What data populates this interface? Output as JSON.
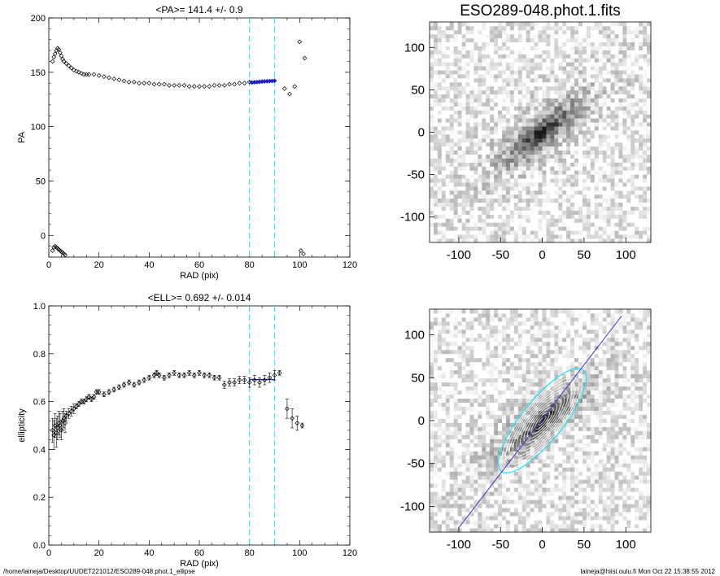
{
  "footer": {
    "left": "/home/laineja/Desktop/UUDET221012/ESO289-048.phot.1_ellipse",
    "right": "laineja@hiisi.oulu.fi  Mon Oct 22 15:38:55 2012"
  },
  "colors": {
    "marker": "#000000",
    "fit_highlight": "#2020c0",
    "fit_line": "#2020a0",
    "range_lines": "#40e0f0",
    "major_axis": "#3a3ac0",
    "outer_isophote": "#40e0f0",
    "inner_isophote": "#ffffff"
  },
  "chart_data": [
    {
      "type": "scatter",
      "title": "<PA>= 141.4 +/-   0.9",
      "xlabel": "RAD (pix)",
      "ylabel": "PA",
      "xlim": [
        0,
        120
      ],
      "ylim": [
        -20,
        200
      ],
      "xticks": [
        "0",
        "20",
        "40",
        "60",
        "80",
        "100",
        "120"
      ],
      "yticks": [
        "0",
        "50",
        "100",
        "150",
        "200"
      ],
      "fit_range": [
        80,
        90
      ],
      "mean_value": 141.4,
      "mean_error": 0.9,
      "series": [
        {
          "x": [
            1.5,
            2.0,
            2.5,
            3.0,
            3.5,
            4.0,
            4.5,
            5.0,
            5.5,
            6.0,
            7.0,
            8.0,
            9.0,
            10.0,
            11.0,
            12.0,
            13.0,
            14.0,
            15.0,
            16.0,
            18.0,
            20.0,
            22.0,
            24.0,
            26.0,
            28.0,
            30.0,
            32.0,
            34.0,
            36.0,
            38.0,
            40.0,
            42.0,
            44.0,
            46.0,
            48.0,
            50.0,
            52.0,
            54.0,
            56.0,
            58.0,
            60.0,
            62.0,
            64.0,
            66.0,
            68.0,
            70.0,
            72.0,
            74.0,
            76.0,
            78.0,
            80.0,
            94.0,
            96.0,
            98.0,
            100.0,
            100.5,
            101.5,
            102.0
          ],
          "y": [
            160,
            164,
            167,
            170,
            172,
            171,
            168,
            165,
            162,
            160,
            158,
            156,
            154,
            152,
            151,
            150,
            149,
            148,
            148,
            148,
            148,
            147,
            146,
            145,
            144,
            143,
            142,
            141,
            141,
            140,
            140,
            140,
            139,
            139,
            139,
            138,
            138,
            138,
            138,
            137,
            137,
            137,
            137,
            137,
            138,
            138,
            138,
            139,
            139,
            140,
            140,
            141,
            135,
            130,
            137,
            178,
            -14,
            -17,
            163
          ]
        },
        {
          "x": [
            1.5,
            2.0,
            2.5,
            3.0,
            3.5,
            4.0,
            4.5,
            5.0,
            5.5,
            6.0,
            6.5
          ],
          "y": [
            -14,
            -11,
            -10,
            -11,
            -12,
            -13,
            -14,
            -15,
            -16,
            -17,
            -18
          ]
        },
        {
          "x": [
            81,
            82,
            83,
            84,
            85,
            86,
            87,
            88,
            89,
            90
          ],
          "y": [
            140.5,
            140.8,
            141.0,
            141.2,
            141.4,
            141.6,
            141.7,
            141.9,
            142.0,
            142.2
          ]
        }
      ]
    },
    {
      "type": "image",
      "title": "ESO289-048.phot.1.fits",
      "xlim": [
        -135,
        130
      ],
      "ylim": [
        -130,
        130
      ],
      "xticks": [
        "-100",
        "-50",
        "0",
        "50",
        "100"
      ],
      "yticks": [
        "100",
        "50",
        "0",
        "-50",
        "-100"
      ],
      "galaxy": {
        "pa": 141.4,
        "ellipticity": 0.692
      }
    },
    {
      "type": "scatter",
      "title": "<ELL>= 0.692 +/-  0.014",
      "xlabel": "RAD (pix)",
      "ylabel": "ellipticity",
      "xlim": [
        0,
        120
      ],
      "ylim": [
        0.0,
        1.0
      ],
      "xticks": [
        "0",
        "20",
        "40",
        "60",
        "80",
        "100",
        "120"
      ],
      "yticks": [
        "0.0",
        "0.2",
        "0.4",
        "0.6",
        "0.8",
        "1.0"
      ],
      "fit_range": [
        80,
        90
      ],
      "mean_value": 0.692,
      "mean_error": 0.014,
      "series": [
        {
          "x": [
            1.5,
            2.0,
            2.5,
            3.0,
            3.5,
            4.0,
            4.5,
            5.0,
            5.5,
            6.0,
            6.5,
            7.0,
            8.0,
            9.0,
            10.0,
            11.0,
            12.0,
            13.0,
            14.0,
            15.0,
            16.0,
            17.0,
            18.0,
            19.0,
            20.0,
            22.0,
            24.0,
            26.0,
            28.0,
            30.0,
            32.0,
            34.0,
            36.0,
            38.0,
            40.0,
            42.0,
            43.0,
            44.0,
            46.0,
            48.0,
            50.0,
            52.0,
            54.0,
            56.0,
            58.0,
            60.0,
            62.0,
            64.0,
            66.0,
            68.0,
            70.0,
            72.0,
            74.0,
            76.0,
            78.0,
            80.0,
            82.0,
            84.0,
            86.0,
            88.0,
            90.0,
            92.0,
            95.0,
            97.0,
            99.0,
            101.0
          ],
          "y": [
            0.48,
            0.46,
            0.5,
            0.47,
            0.49,
            0.51,
            0.5,
            0.48,
            0.52,
            0.53,
            0.51,
            0.54,
            0.55,
            0.56,
            0.57,
            0.58,
            0.59,
            0.6,
            0.6,
            0.61,
            0.62,
            0.61,
            0.62,
            0.64,
            0.64,
            0.63,
            0.64,
            0.65,
            0.66,
            0.67,
            0.68,
            0.67,
            0.68,
            0.69,
            0.7,
            0.71,
            0.72,
            0.71,
            0.7,
            0.71,
            0.72,
            0.71,
            0.71,
            0.72,
            0.71,
            0.72,
            0.71,
            0.71,
            0.7,
            0.7,
            0.67,
            0.68,
            0.68,
            0.69,
            0.69,
            0.68,
            0.69,
            0.68,
            0.69,
            0.7,
            0.71,
            0.72,
            0.57,
            0.53,
            0.51,
            0.5
          ],
          "yerr": [
            0.05,
            0.06,
            0.05,
            0.06,
            0.05,
            0.05,
            0.05,
            0.04,
            0.04,
            0.04,
            0.04,
            0.02,
            0.02,
            0.02,
            0.02,
            0.01,
            0.01,
            0.01,
            0.01,
            0.01,
            0.01,
            0.01,
            0.01,
            0.01,
            0.01,
            0.01,
            0.01,
            0.01,
            0.01,
            0.01,
            0.01,
            0.01,
            0.01,
            0.01,
            0.01,
            0.01,
            0.01,
            0.01,
            0.01,
            0.01,
            0.01,
            0.01,
            0.01,
            0.01,
            0.01,
            0.01,
            0.01,
            0.01,
            0.01,
            0.01,
            0.015,
            0.015,
            0.015,
            0.015,
            0.015,
            0.02,
            0.02,
            0.02,
            0.02,
            0.02,
            0.02,
            0.01,
            0.04,
            0.04,
            0.03,
            0.01
          ]
        }
      ]
    },
    {
      "type": "image",
      "title": "",
      "xlim": [
        -135,
        130
      ],
      "ylim": [
        -130,
        130
      ],
      "xticks": [
        "-100",
        "-50",
        "0",
        "50",
        "100"
      ],
      "yticks": [
        "100",
        "50",
        "0",
        "-50",
        "-100"
      ],
      "galaxy": {
        "pa": 141.4,
        "ellipticity": 0.692
      },
      "isophotes": true,
      "major_axis": true
    }
  ]
}
